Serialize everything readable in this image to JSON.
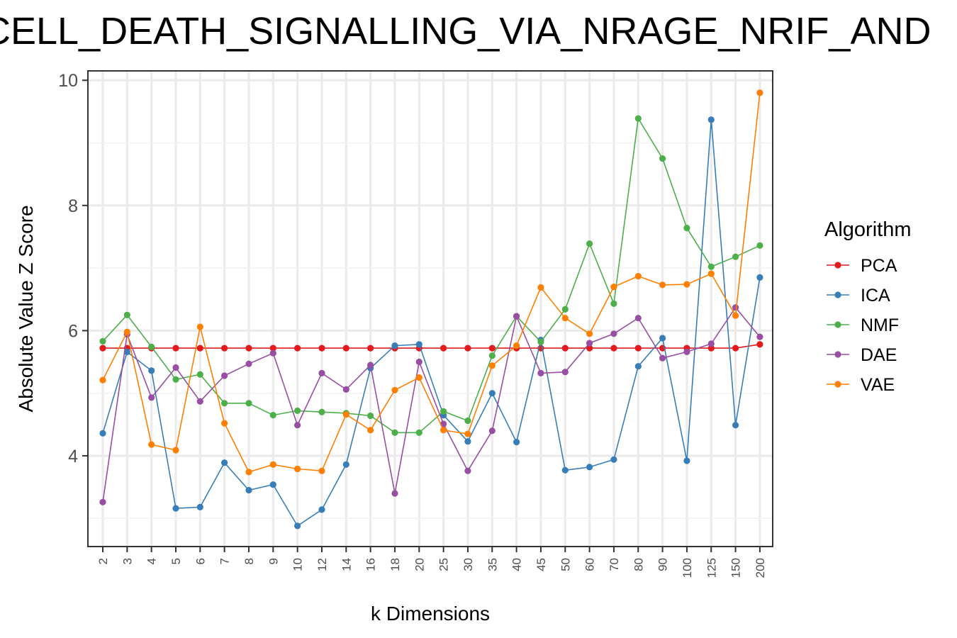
{
  "chart_data": {
    "type": "line",
    "title": "CELL_DEATH_SIGNALLING_VIA_NRAGE_NRIF_AND",
    "xlabel": "k Dimensions",
    "ylabel": "Absolute Value Z Score",
    "x_type": "categorical",
    "categories": [
      "2",
      "3",
      "4",
      "5",
      "6",
      "7",
      "8",
      "9",
      "10",
      "12",
      "14",
      "16",
      "18",
      "20",
      "25",
      "30",
      "35",
      "40",
      "45",
      "50",
      "60",
      "70",
      "80",
      "90",
      "100",
      "125",
      "150",
      "200"
    ],
    "y_ticks": [
      4,
      6,
      8,
      10
    ],
    "ylim": [
      2.55,
      10.15
    ],
    "grid": true,
    "legend": {
      "title": "Algorithm",
      "position": "right"
    },
    "series": [
      {
        "name": "PCA",
        "color": "#e41a1c",
        "values": [
          5.72,
          5.72,
          5.72,
          5.72,
          5.72,
          5.72,
          5.72,
          5.72,
          5.72,
          5.72,
          5.72,
          5.72,
          5.72,
          5.72,
          5.72,
          5.72,
          5.72,
          5.72,
          5.72,
          5.72,
          5.72,
          5.72,
          5.72,
          5.72,
          5.72,
          5.72,
          5.72,
          5.78
        ]
      },
      {
        "name": "ICA",
        "color": "#377eb8",
        "values": [
          4.36,
          5.66,
          5.36,
          3.16,
          3.18,
          3.89,
          3.45,
          3.54,
          2.88,
          3.14,
          3.86,
          5.4,
          5.76,
          5.78,
          4.65,
          4.23,
          5.0,
          4.22,
          5.85,
          3.77,
          3.82,
          3.94,
          5.43,
          5.88,
          3.92,
          9.37,
          4.49,
          6.85
        ]
      },
      {
        "name": "NMF",
        "color": "#4daf4a",
        "values": [
          5.83,
          6.25,
          5.74,
          5.22,
          5.3,
          4.84,
          4.84,
          4.65,
          4.72,
          4.7,
          4.68,
          4.64,
          4.37,
          4.37,
          4.71,
          4.56,
          5.6,
          6.23,
          5.82,
          6.34,
          7.39,
          6.43,
          9.39,
          8.75,
          7.64,
          7.02,
          7.18,
          7.36
        ]
      },
      {
        "name": "DAE",
        "color": "#984ea3",
        "values": [
          3.26,
          5.94,
          4.93,
          5.41,
          4.87,
          5.28,
          5.47,
          5.64,
          4.49,
          5.32,
          5.06,
          5.45,
          3.4,
          5.5,
          4.51,
          3.76,
          4.4,
          6.23,
          5.32,
          5.34,
          5.8,
          5.95,
          6.2,
          5.56,
          5.66,
          5.79,
          6.37,
          5.9
        ]
      },
      {
        "name": "VAE",
        "color": "#ff7f00",
        "values": [
          5.21,
          5.98,
          4.18,
          4.09,
          6.06,
          4.52,
          3.74,
          3.86,
          3.79,
          3.76,
          4.66,
          4.41,
          5.05,
          5.25,
          4.41,
          4.35,
          5.44,
          5.76,
          6.69,
          6.2,
          5.95,
          6.7,
          6.87,
          6.73,
          6.74,
          6.91,
          6.24,
          9.8
        ]
      }
    ]
  }
}
